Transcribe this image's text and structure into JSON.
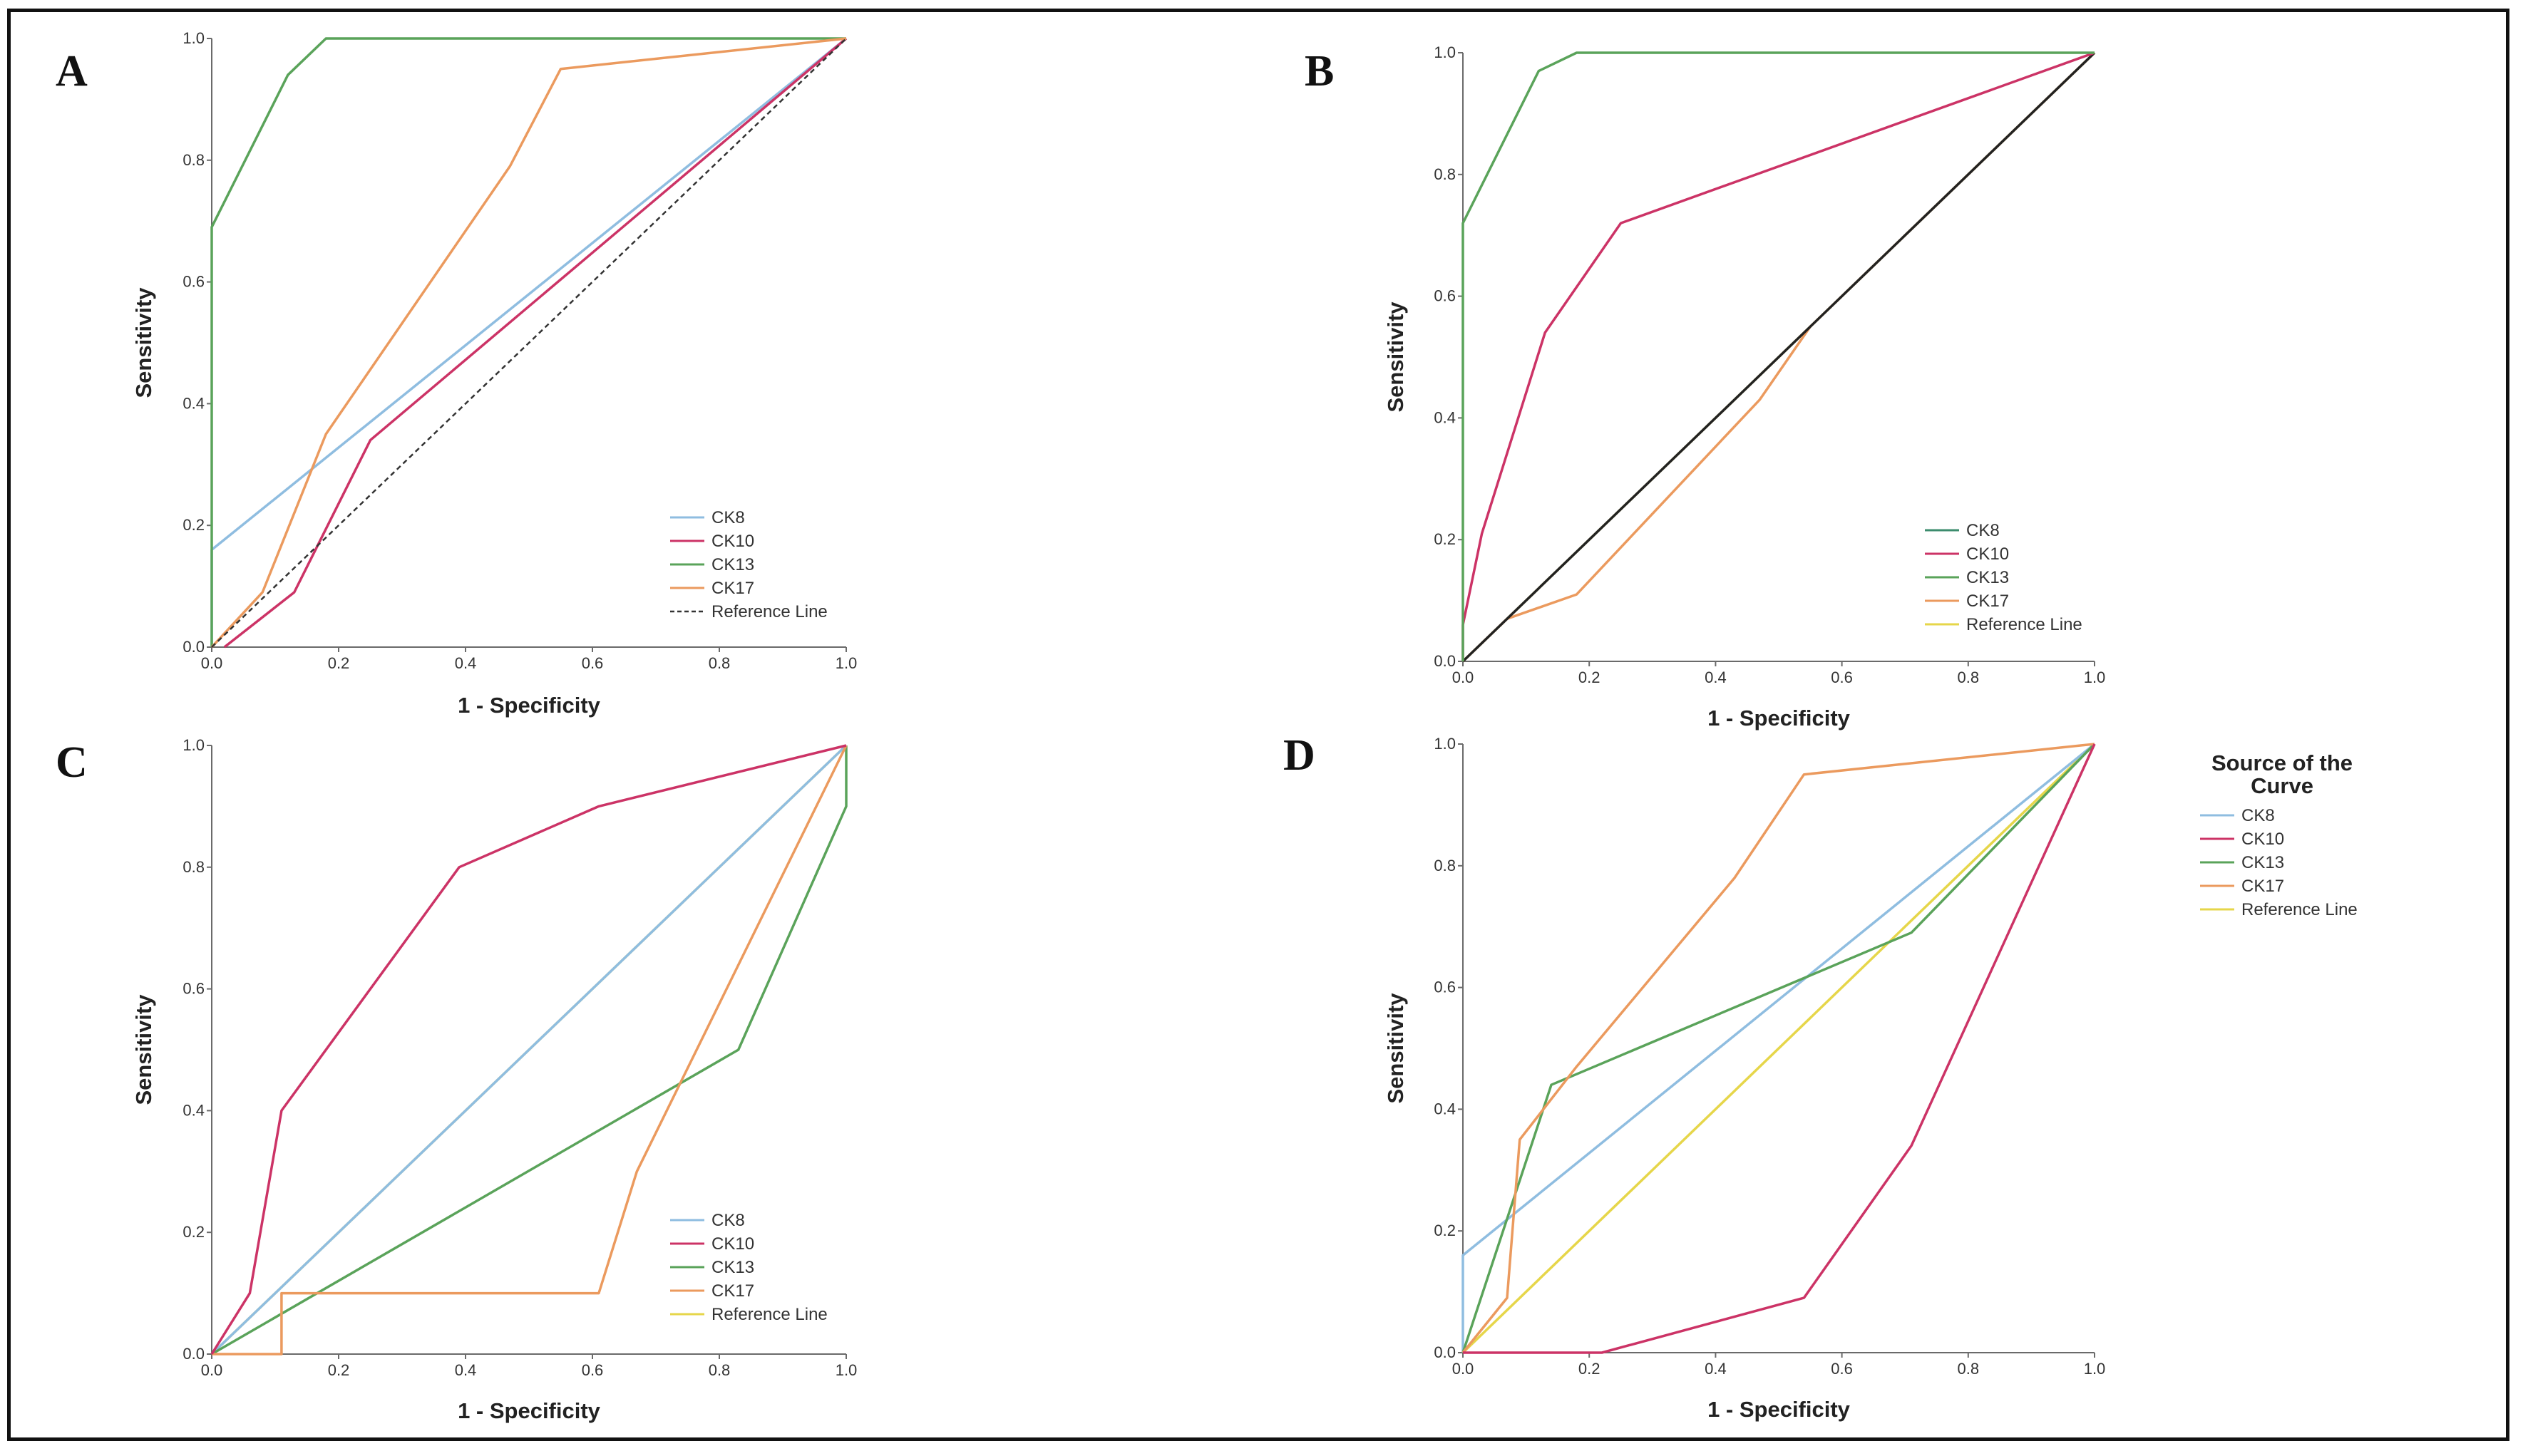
{
  "colors": {
    "CK8": "#8fbde0",
    "CK10": "#cc3366",
    "CK13": "#5aa35a",
    "CK17": "#eb9a5e",
    "Reference Line": "#e6d64a",
    "axis": "#6a6a6a"
  },
  "chart_data": [
    {
      "panel": "A",
      "type": "line",
      "xlabel": "1 - Specificity",
      "ylabel": "Sensitivity",
      "xlim": [
        0,
        1
      ],
      "ylim": [
        0,
        1
      ],
      "xticks": [
        "0.0",
        "0.2",
        "0.4",
        "0.6",
        "0.8",
        "1.0"
      ],
      "yticks": [
        "0.0",
        "0.2",
        "0.4",
        "0.6",
        "0.8",
        "1.0"
      ],
      "legend_position": "bottom-right",
      "legend": [
        "CK8",
        "CK10",
        "CK13",
        "CK17",
        "Reference Line"
      ],
      "reference_dashed": true,
      "series": [
        {
          "name": "CK8",
          "x": [
            0,
            0,
            1
          ],
          "y": [
            0,
            0.16,
            1
          ]
        },
        {
          "name": "CK10",
          "x": [
            0.02,
            0.13,
            0.25,
            1
          ],
          "y": [
            0,
            0.09,
            0.34,
            1
          ]
        },
        {
          "name": "CK13",
          "x": [
            0,
            0,
            0.12,
            0.18,
            1
          ],
          "y": [
            0,
            0.69,
            0.94,
            1,
            1
          ]
        },
        {
          "name": "CK17",
          "x": [
            0,
            0.08,
            0.18,
            0.47,
            0.55,
            1
          ],
          "y": [
            0,
            0.09,
            0.35,
            0.79,
            0.95,
            1
          ]
        },
        {
          "name": "Reference Line",
          "x": [
            0,
            1
          ],
          "y": [
            0,
            1
          ]
        }
      ]
    },
    {
      "panel": "B",
      "type": "line",
      "xlabel": "1 - Specificity",
      "ylabel": "Sensitivity",
      "xlim": [
        0,
        1
      ],
      "ylim": [
        0,
        1
      ],
      "xticks": [
        "0.0",
        "0.2",
        "0.4",
        "0.6",
        "0.8",
        "1.0"
      ],
      "yticks": [
        "0.0",
        "0.2",
        "0.4",
        "0.6",
        "0.8",
        "1.0"
      ],
      "legend_position": "bottom-right",
      "legend": [
        "CK8",
        "CK10",
        "CK13",
        "CK17",
        "Reference Line"
      ],
      "series": [
        {
          "name": "Reference Line",
          "x": [
            0,
            1
          ],
          "y": [
            0,
            1
          ]
        },
        {
          "name": "CK17",
          "x": [
            0,
            0.07,
            0.18,
            0.47,
            0.55,
            1
          ],
          "y": [
            0,
            0.07,
            0.11,
            0.43,
            0.55,
            1
          ]
        },
        {
          "name": "CK8",
          "x": [
            0,
            1
          ],
          "y": [
            0,
            1
          ],
          "color": "#222222"
        },
        {
          "name": "CK10",
          "x": [
            0,
            0,
            0.03,
            0.13,
            0.25,
            1
          ],
          "y": [
            0,
            0.06,
            0.21,
            0.54,
            0.72,
            1
          ]
        },
        {
          "name": "CK13",
          "x": [
            0,
            0,
            0.12,
            0.18,
            1
          ],
          "y": [
            0,
            0.72,
            0.97,
            1,
            1
          ]
        }
      ]
    },
    {
      "panel": "C",
      "type": "line",
      "xlabel": "1 - Specificity",
      "ylabel": "Sensitivity",
      "xlim": [
        0,
        1
      ],
      "ylim": [
        0,
        1
      ],
      "xticks": [
        "0.0",
        "0.2",
        "0.4",
        "0.6",
        "0.8",
        "1.0"
      ],
      "yticks": [
        "0.0",
        "0.2",
        "0.4",
        "0.6",
        "0.8",
        "1.0"
      ],
      "legend_position": "bottom-right",
      "legend": [
        "CK8",
        "CK10",
        "CK13",
        "CK17",
        "Reference Line"
      ],
      "series": [
        {
          "name": "Reference Line",
          "x": [
            0,
            1
          ],
          "y": [
            0,
            1
          ]
        },
        {
          "name": "CK8",
          "x": [
            0,
            1
          ],
          "y": [
            0,
            1
          ]
        },
        {
          "name": "CK13",
          "x": [
            0,
            0.83,
            1,
            1
          ],
          "y": [
            0,
            0.5,
            0.9,
            1
          ]
        },
        {
          "name": "CK17",
          "x": [
            0,
            0.11,
            0.11,
            0.61,
            0.67,
            1
          ],
          "y": [
            0,
            0,
            0.1,
            0.1,
            0.3,
            1
          ]
        },
        {
          "name": "CK10",
          "x": [
            0,
            0.06,
            0.11,
            0.39,
            0.61,
            1
          ],
          "y": [
            0,
            0.1,
            0.4,
            0.8,
            0.9,
            1
          ]
        }
      ]
    },
    {
      "panel": "D",
      "type": "line",
      "xlabel": "1 - Specificity",
      "ylabel": "Sensitivity",
      "xlim": [
        0,
        1
      ],
      "ylim": [
        0,
        1
      ],
      "xticks": [
        "0.0",
        "0.2",
        "0.4",
        "0.6",
        "0.8",
        "1.0"
      ],
      "yticks": [
        "0.0",
        "0.2",
        "0.4",
        "0.6",
        "0.8",
        "1.0"
      ],
      "legend_position": "outside-right",
      "legend_title": "Source of the Curve",
      "legend": [
        "CK8",
        "CK10",
        "CK13",
        "CK17",
        "Reference Line"
      ],
      "series": [
        {
          "name": "Reference Line",
          "x": [
            0,
            1
          ],
          "y": [
            0,
            1
          ]
        },
        {
          "name": "CK8",
          "x": [
            0,
            0,
            1
          ],
          "y": [
            0,
            0.16,
            1
          ]
        },
        {
          "name": "CK13",
          "x": [
            0,
            0.14,
            0.71,
            1
          ],
          "y": [
            0,
            0.44,
            0.69,
            1
          ]
        },
        {
          "name": "CK17",
          "x": [
            0,
            0.07,
            0.09,
            0.18,
            0.43,
            0.54,
            1
          ],
          "y": [
            0,
            0.09,
            0.35,
            0.47,
            0.78,
            0.95,
            1
          ]
        },
        {
          "name": "CK10",
          "x": [
            0,
            0.22,
            0.54,
            0.71,
            1
          ],
          "y": [
            0,
            0,
            0.09,
            0.34,
            1
          ]
        }
      ]
    }
  ]
}
